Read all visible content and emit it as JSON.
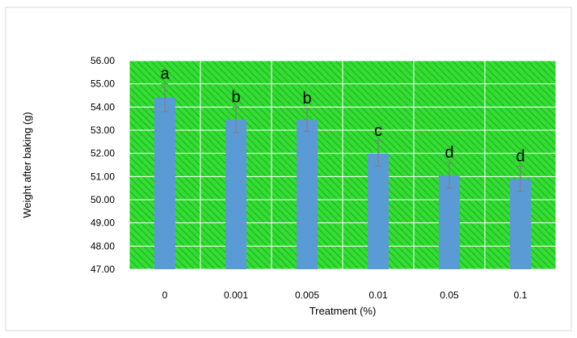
{
  "chart_data": {
    "type": "bar",
    "categories": [
      "0",
      "0.001",
      "0.005",
      "0.01",
      "0.05",
      "0.1"
    ],
    "values": [
      54.4,
      53.45,
      53.45,
      52.0,
      51.05,
      50.9
    ],
    "error_bars": [
      0.6,
      0.55,
      0.5,
      0.55,
      0.55,
      0.55
    ],
    "significance_letters": [
      "a",
      "b",
      "b",
      "c",
      "d",
      "d"
    ],
    "title": "",
    "xlabel": "Treatment (%)",
    "ylabel": "Weight after baking (g)",
    "ylim": [
      47,
      56
    ],
    "yticks": [
      "56.00",
      "55.00",
      "54.00",
      "53.00",
      "52.00",
      "51.00",
      "50.00",
      "49.00",
      "48.00",
      "47.00"
    ],
    "grid": true,
    "legend": "none"
  },
  "colors": {
    "bar": "#5b9bd5",
    "plot_background": "#33dd33",
    "hatch": "#1faa1f",
    "grid": "#ffffff",
    "error_bar": "#808080",
    "text": "#000000"
  }
}
